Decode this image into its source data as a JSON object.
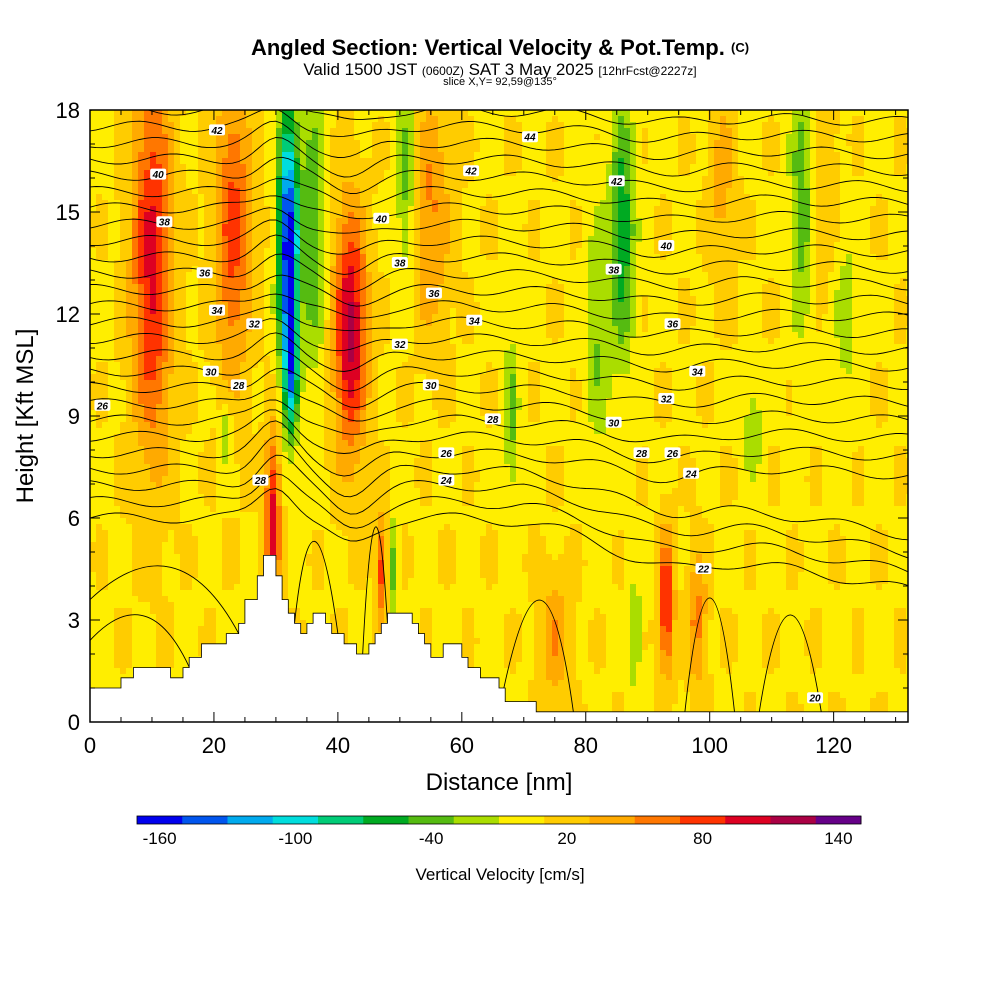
{
  "header": {
    "title": "Angled Section: Vertical Velocity & Pot.Temp.",
    "copyright": "(C)",
    "valid_prefix": "Valid 1500 JST",
    "zulu": "(0600Z)",
    "valid_date": "SAT 3 May 2025",
    "forecast": "[12hrFcst@2227z]",
    "slice": "slice X,Y= 92,59@135°"
  },
  "chart_data": {
    "type": "heatmap",
    "xlabel": "Distance [nm]",
    "ylabel": "Height [Kft MSL]",
    "xlim": [
      0,
      132
    ],
    "ylim": [
      0,
      18
    ],
    "x_ticks": [
      0,
      20,
      40,
      60,
      80,
      100,
      120
    ],
    "y_ticks": [
      0,
      3,
      6,
      9,
      12,
      15,
      18
    ],
    "colorbar": {
      "title": "Vertical Velocity [cm/s]",
      "range": [
        -170,
        150
      ],
      "step": 20,
      "tick_labels": [
        "-160",
        "-100",
        "-40",
        "20",
        "80",
        "140"
      ],
      "tick_values": [
        -160,
        -100,
        -40,
        20,
        80,
        140
      ],
      "colors": [
        "#0000ee",
        "#0055ee",
        "#00aaee",
        "#00dddd",
        "#00cc77",
        "#00aa22",
        "#55bb11",
        "#aadd00",
        "#ffee00",
        "#ffcc00",
        "#ffaa00",
        "#ff7700",
        "#ff3300",
        "#dd0022",
        "#aa0044",
        "#660088"
      ]
    },
    "terrain_profile": [
      [
        0,
        1.0
      ],
      [
        5,
        1.0
      ],
      [
        5,
        1.3
      ],
      [
        7,
        1.3
      ],
      [
        7,
        1.6
      ],
      [
        13,
        1.6
      ],
      [
        13,
        1.3
      ],
      [
        15,
        1.3
      ],
      [
        15,
        1.6
      ],
      [
        16,
        1.6
      ],
      [
        16,
        1.9
      ],
      [
        18,
        1.9
      ],
      [
        18,
        2.3
      ],
      [
        22,
        2.3
      ],
      [
        22,
        2.6
      ],
      [
        24,
        2.6
      ],
      [
        24,
        2.9
      ],
      [
        25,
        2.9
      ],
      [
        25,
        3.6
      ],
      [
        27,
        3.6
      ],
      [
        27,
        4.3
      ],
      [
        28,
        4.3
      ],
      [
        28,
        4.9
      ],
      [
        30,
        4.9
      ],
      [
        30,
        4.3
      ],
      [
        31,
        4.3
      ],
      [
        31,
        3.6
      ],
      [
        32,
        3.6
      ],
      [
        32,
        3.2
      ],
      [
        33,
        3.2
      ],
      [
        33,
        2.9
      ],
      [
        34,
        2.9
      ],
      [
        34,
        2.6
      ],
      [
        35,
        2.6
      ],
      [
        35,
        2.9
      ],
      [
        36,
        2.9
      ],
      [
        36,
        3.2
      ],
      [
        38,
        3.2
      ],
      [
        38,
        2.9
      ],
      [
        39,
        2.9
      ],
      [
        39,
        2.6
      ],
      [
        41,
        2.6
      ],
      [
        41,
        2.3
      ],
      [
        43,
        2.3
      ],
      [
        43,
        2.0
      ],
      [
        45,
        2.0
      ],
      [
        45,
        2.3
      ],
      [
        46,
        2.3
      ],
      [
        46,
        2.6
      ],
      [
        47,
        2.6
      ],
      [
        47,
        2.9
      ],
      [
        48,
        2.9
      ],
      [
        48,
        3.2
      ],
      [
        52,
        3.2
      ],
      [
        52,
        2.9
      ],
      [
        53,
        2.9
      ],
      [
        53,
        2.6
      ],
      [
        54,
        2.6
      ],
      [
        54,
        2.3
      ],
      [
        55,
        2.3
      ],
      [
        55,
        1.9
      ],
      [
        57,
        1.9
      ],
      [
        57,
        2.3
      ],
      [
        60,
        2.3
      ],
      [
        60,
        1.9
      ],
      [
        61,
        1.9
      ],
      [
        61,
        1.6
      ],
      [
        63,
        1.6
      ],
      [
        63,
        1.3
      ],
      [
        66,
        1.3
      ],
      [
        66,
        1.0
      ],
      [
        67,
        1.0
      ],
      [
        67,
        0.6
      ],
      [
        72,
        0.6
      ],
      [
        72,
        0.3
      ],
      [
        132,
        0.3
      ]
    ],
    "updrafts": [
      {
        "x": 10,
        "y": 13.5,
        "sx": 3.2,
        "sy": 5.5,
        "w": 90
      },
      {
        "x": 23,
        "y": 14.5,
        "sx": 2.8,
        "sy": 4.5,
        "w": 70
      },
      {
        "x": 29.5,
        "y": 6.0,
        "sx": 1.2,
        "sy": 2.5,
        "w": 95
      },
      {
        "x": 42,
        "y": 11.5,
        "sx": 2.6,
        "sy": 3.5,
        "w": 110
      },
      {
        "x": 47,
        "y": 4.5,
        "sx": 0.8,
        "sy": 1.5,
        "w": 70
      },
      {
        "x": 55,
        "y": 15.0,
        "sx": 3.0,
        "sy": 3.5,
        "w": 45
      },
      {
        "x": 93,
        "y": 3.5,
        "sx": 1.2,
        "sy": 2.0,
        "w": 90
      },
      {
        "x": 98,
        "y": 3.0,
        "sx": 1.5,
        "sy": 2.0,
        "w": 50
      },
      {
        "x": 75,
        "y": 2.5,
        "sx": 2.5,
        "sy": 1.8,
        "w": 40
      },
      {
        "x": 102,
        "y": 16,
        "sx": 2.0,
        "sy": 3.0,
        "w": 30
      },
      {
        "x": 118,
        "y": 16,
        "sx": 2.5,
        "sy": 3.0,
        "w": 25
      }
    ],
    "downdrafts": [
      {
        "x": 32,
        "y": 14.0,
        "sx": 1.6,
        "sy": 4.0,
        "w": -175
      },
      {
        "x": 32.5,
        "y": 10.5,
        "sx": 1.0,
        "sy": 2.0,
        "w": -90
      },
      {
        "x": 36,
        "y": 14.5,
        "sx": 2.0,
        "sy": 4.0,
        "w": -60
      },
      {
        "x": 51,
        "y": 16.0,
        "sx": 1.5,
        "sy": 3.0,
        "w": -50
      },
      {
        "x": 49,
        "y": 4.5,
        "sx": 0.7,
        "sy": 1.5,
        "w": -45
      },
      {
        "x": 86,
        "y": 14.5,
        "sx": 2.0,
        "sy": 4.0,
        "w": -70
      },
      {
        "x": 82,
        "y": 11.5,
        "sx": 2.0,
        "sy": 3.5,
        "w": -40
      },
      {
        "x": 115,
        "y": 15.5,
        "sx": 2.0,
        "sy": 4.0,
        "w": -55
      },
      {
        "x": 68,
        "y": 9.0,
        "sx": 1.2,
        "sy": 2.5,
        "w": -45
      },
      {
        "x": 22,
        "y": 8.5,
        "sx": 1.0,
        "sy": 1.0,
        "w": -45
      },
      {
        "x": 88,
        "y": 2.5,
        "sx": 1.0,
        "sy": 2.0,
        "w": -35
      },
      {
        "x": 107,
        "y": 8.5,
        "sx": 1.5,
        "sy": 1.5,
        "w": -35
      },
      {
        "x": 122,
        "y": 12,
        "sx": 2.0,
        "sy": 2.5,
        "w": -30
      }
    ],
    "isentrope_labels": [
      {
        "text": "42",
        "x": 20.5,
        "y": 17.4
      },
      {
        "text": "40",
        "x": 11,
        "y": 16.1
      },
      {
        "text": "38",
        "x": 12,
        "y": 14.7
      },
      {
        "text": "36",
        "x": 18.5,
        "y": 13.2
      },
      {
        "text": "34",
        "x": 20.5,
        "y": 12.1
      },
      {
        "text": "32",
        "x": 26.5,
        "y": 11.7
      },
      {
        "text": "30",
        "x": 19.5,
        "y": 10.3
      },
      {
        "text": "28",
        "x": 24,
        "y": 9.9
      },
      {
        "text": "26",
        "x": 2,
        "y": 9.3
      },
      {
        "text": "28",
        "x": 27.5,
        "y": 7.1
      },
      {
        "text": "40",
        "x": 47,
        "y": 14.8
      },
      {
        "text": "38",
        "x": 50,
        "y": 13.5
      },
      {
        "text": "36",
        "x": 55.5,
        "y": 12.6
      },
      {
        "text": "32",
        "x": 50,
        "y": 11.1
      },
      {
        "text": "30",
        "x": 55,
        "y": 9.9
      },
      {
        "text": "28",
        "x": 65,
        "y": 8.9
      },
      {
        "text": "26",
        "x": 57.5,
        "y": 7.9
      },
      {
        "text": "24",
        "x": 57.5,
        "y": 7.1
      },
      {
        "text": "44",
        "x": 71,
        "y": 17.2
      },
      {
        "text": "42",
        "x": 61.5,
        "y": 16.2
      },
      {
        "text": "34",
        "x": 62,
        "y": 11.8
      },
      {
        "text": "42",
        "x": 85,
        "y": 15.9
      },
      {
        "text": "40",
        "x": 93,
        "y": 14.0
      },
      {
        "text": "38",
        "x": 84.5,
        "y": 13.3
      },
      {
        "text": "36",
        "x": 94,
        "y": 11.7
      },
      {
        "text": "34",
        "x": 98,
        "y": 10.3
      },
      {
        "text": "32",
        "x": 93,
        "y": 9.5
      },
      {
        "text": "30",
        "x": 84.5,
        "y": 8.8
      },
      {
        "text": "28",
        "x": 89,
        "y": 7.9
      },
      {
        "text": "26",
        "x": 94,
        "y": 7.9
      },
      {
        "text": "24",
        "x": 97,
        "y": 7.3
      },
      {
        "text": "22",
        "x": 99,
        "y": 4.5
      },
      {
        "text": "20",
        "x": 117,
        "y": 0.7
      }
    ]
  }
}
